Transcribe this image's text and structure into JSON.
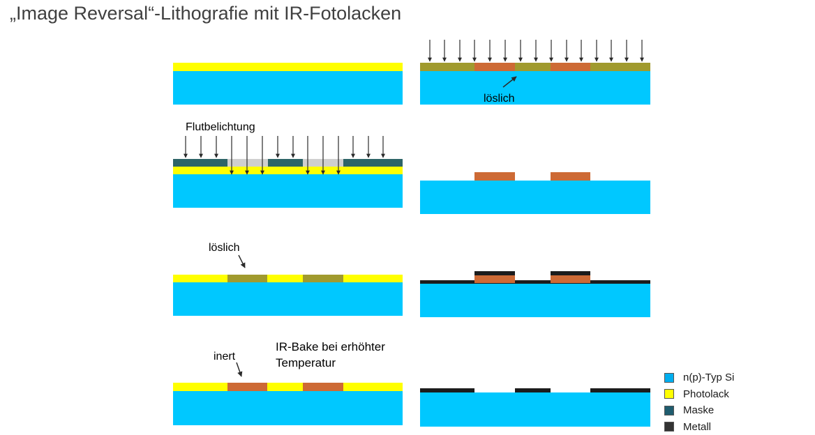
{
  "title": "„Image Reversal“-Lithografie mit IR-Fotolacken",
  "colors": {
    "si": "#00c8ff",
    "photolack": "#ffff00",
    "exposed": "#a09a2e",
    "inert": "#cd6a35",
    "maske": "#2e6467",
    "maske_gap": "#cfcfcf",
    "metall": "#1c1c1c",
    "arrow": "#2a2a2a"
  },
  "labels": {
    "loeslich_top": "löslich",
    "flutbelichtung": "Flutbelichtung",
    "loeslich_mid": "löslich",
    "inert": "inert",
    "irbake_line1": "IR-Bake bei erhöhter",
    "irbake_line2": "Temperatur"
  },
  "legend": [
    {
      "label": "n(p)-Typ Si",
      "color": "#00aeef",
      "icon": "si-swatch"
    },
    {
      "label": "Photolack",
      "color": "#ffff00",
      "icon": "photolack-swatch"
    },
    {
      "label": "Maske",
      "color": "#1f5c6e",
      "icon": "maske-swatch"
    },
    {
      "label": "Metall",
      "color": "#333333",
      "icon": "metall-swatch"
    }
  ]
}
